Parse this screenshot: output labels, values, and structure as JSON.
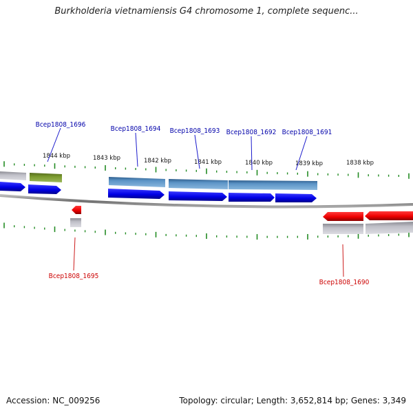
{
  "title": "Burkholderia vietnamiensis G4 chromosome 1, complete sequenc...",
  "accession_label": "Accession: NC_009256",
  "topology_label": "Topology: circular; Length: 3,652,814 bp; Genes: 3,349",
  "colors": {
    "forward_gene": "#0000ee",
    "reverse_gene": "#ee0000",
    "forward_label": "#0000aa",
    "reverse_label": "#cc0000",
    "tick": "#228b22",
    "feature_steelblue": "#4a82b4",
    "feature_olive": "#6b8e23",
    "feature_gray": "#b8b8c0",
    "backbone": "#888888"
  },
  "scale_labels": [
    "1844 kbp",
    "1843 kbp",
    "1842 kbp",
    "1841 kbp",
    "1840 kbp",
    "1839 kbp",
    "1838 kbp"
  ],
  "genes": [
    {
      "name": "Bcep1808_1696",
      "strand": "forward"
    },
    {
      "name": "Bcep1808_1694",
      "strand": "forward"
    },
    {
      "name": "Bcep1808_1693",
      "strand": "forward"
    },
    {
      "name": "Bcep1808_1692",
      "strand": "forward"
    },
    {
      "name": "Bcep1808_1691",
      "strand": "forward"
    },
    {
      "name": "Bcep1808_1695",
      "strand": "reverse"
    },
    {
      "name": "Bcep1808_1690",
      "strand": "reverse"
    }
  ]
}
